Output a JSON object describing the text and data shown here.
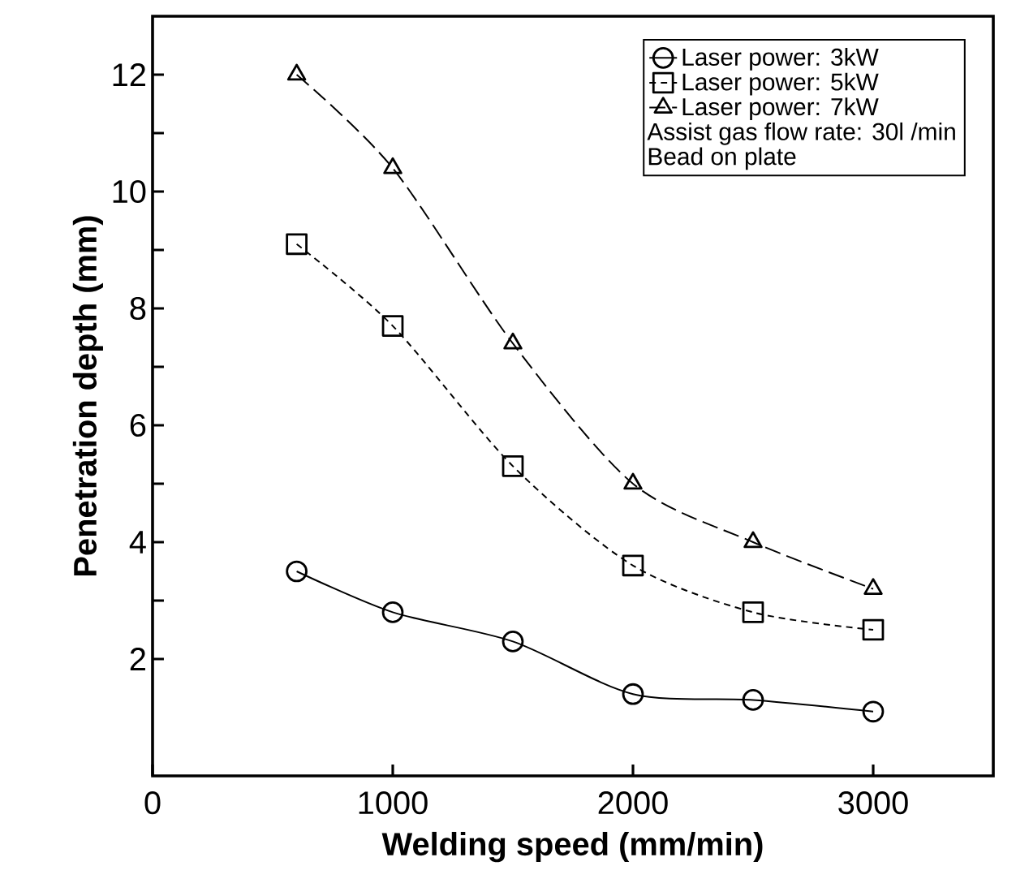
{
  "chart_data": {
    "type": "line",
    "xlabel": "Welding speed (mm/min)",
    "ylabel": "Penetration depth (mm)",
    "xlim": [
      0,
      3500
    ],
    "xticks": [
      0,
      1000,
      2000,
      3000
    ],
    "ylim": [
      0,
      13
    ],
    "yticks": [
      2,
      4,
      6,
      8,
      10,
      12
    ],
    "legend": "top right",
    "grid": false,
    "annotations": [
      "Assist gas flow rate: 30l /min",
      "Bead on plate"
    ],
    "series": [
      {
        "name": "Laser power: 3kW",
        "color": "#000000",
        "marker": "circle",
        "line_style": "solid",
        "x": [
          600,
          1000,
          1500,
          2000,
          2500,
          3000
        ],
        "values": [
          3.5,
          2.8,
          2.3,
          1.4,
          1.3,
          1.1
        ]
      },
      {
        "name": "Laser power: 5kW",
        "color": "#000000",
        "marker": "square",
        "line_style": "dashed",
        "x": [
          600,
          1000,
          1500,
          2000,
          2500,
          3000
        ],
        "values": [
          9.1,
          7.7,
          5.3,
          3.6,
          2.8,
          2.5
        ]
      },
      {
        "name": "Laser power: 7kW",
        "color": "#000000",
        "marker": "triangle",
        "line_style": "dashed",
        "x": [
          600,
          1000,
          1500,
          2000,
          2500,
          3000
        ],
        "values": [
          12,
          10.4,
          7.4,
          5.0,
          4.0,
          3.2
        ]
      }
    ]
  }
}
